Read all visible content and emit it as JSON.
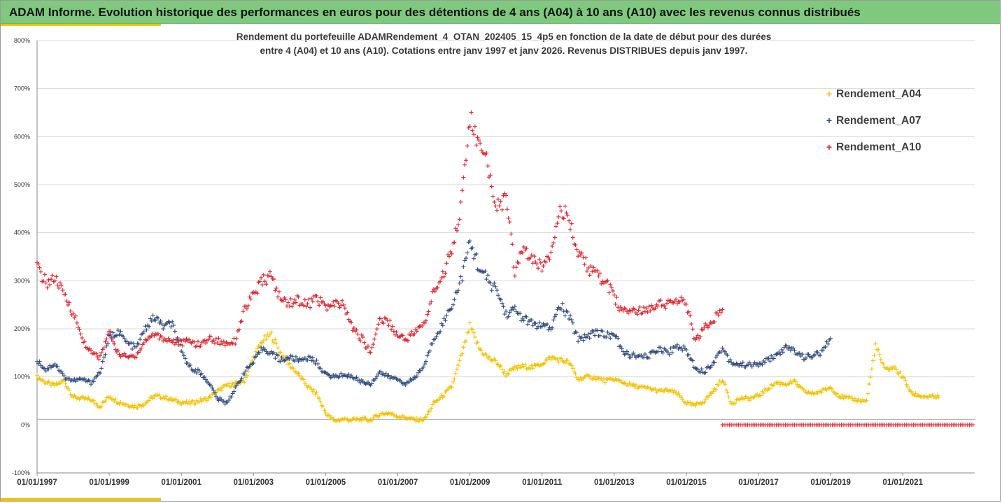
{
  "banner": {
    "title": "ADAM Informe. Evolution historique des performances en euros pour des détentions de 4 ans (A04) à 10 ans (A10) avec les revenus connus distribués"
  },
  "chart_data": {
    "type": "scatter",
    "title_lines": [
      "Rendement du portefeuille ADAMRendement_4_OTAN_202405_15_4p5  en fonction de la date de début pour des durées",
      "entre 4 (A04) et 10 ans (A10). Cotations entre janv 1997 et janv 2026. Revenus DISTRIBUES depuis janv 1997."
    ],
    "xlabel": "",
    "ylabel": "",
    "x_range": [
      "1997-01-01",
      "2022-12-31"
    ],
    "ylim": [
      -100,
      800
    ],
    "y_ticks": [
      -100,
      0,
      100,
      200,
      300,
      400,
      500,
      600,
      700,
      800
    ],
    "y_tick_labels": [
      "-100%",
      "0%",
      "100%",
      "200%",
      "300%",
      "400%",
      "500%",
      "600%",
      "700%",
      "800%"
    ],
    "x_tick_labels": [
      "01/01/1997",
      "01/01/1999",
      "01/01/2001",
      "01/01/2003",
      "01/01/2005",
      "01/01/2007",
      "01/01/2009",
      "01/01/2011",
      "01/01/2013",
      "01/01/2015",
      "01/01/2017",
      "01/01/2019",
      "01/01/2021"
    ],
    "grid": "horizontal",
    "legend_position": "right",
    "marker": "+",
    "series": [
      {
        "name": "Rendement_A04",
        "color": "#f2c200",
        "points": [
          [
            "1997-01-01",
            100
          ],
          [
            "1997-04-01",
            88
          ],
          [
            "1997-07-01",
            82
          ],
          [
            "1997-10-01",
            92
          ],
          [
            "1998-01-01",
            58
          ],
          [
            "1998-04-01",
            55
          ],
          [
            "1998-07-01",
            52
          ],
          [
            "1998-10-01",
            38
          ],
          [
            "1999-01-01",
            60
          ],
          [
            "1999-04-01",
            48
          ],
          [
            "1999-07-01",
            42
          ],
          [
            "1999-10-01",
            38
          ],
          [
            "2000-01-01",
            45
          ],
          [
            "2000-04-01",
            60
          ],
          [
            "2000-07-01",
            58
          ],
          [
            "2000-10-01",
            52
          ],
          [
            "2001-01-01",
            47
          ],
          [
            "2001-04-01",
            45
          ],
          [
            "2001-07-01",
            50
          ],
          [
            "2001-10-01",
            55
          ],
          [
            "2002-01-01",
            70
          ],
          [
            "2002-04-01",
            82
          ],
          [
            "2002-07-01",
            85
          ],
          [
            "2002-10-01",
            92
          ],
          [
            "2003-01-01",
            140
          ],
          [
            "2003-04-01",
            175
          ],
          [
            "2003-07-01",
            188
          ],
          [
            "2003-10-01",
            150
          ],
          [
            "2004-01-01",
            125
          ],
          [
            "2004-04-01",
            105
          ],
          [
            "2004-07-01",
            80
          ],
          [
            "2004-10-01",
            65
          ],
          [
            "2005-01-01",
            25
          ],
          [
            "2005-04-01",
            8
          ],
          [
            "2005-07-01",
            12
          ],
          [
            "2005-10-01",
            10
          ],
          [
            "2006-01-01",
            12
          ],
          [
            "2006-04-01",
            10
          ],
          [
            "2006-07-01",
            22
          ],
          [
            "2006-10-01",
            25
          ],
          [
            "2007-01-01",
            18
          ],
          [
            "2007-04-01",
            15
          ],
          [
            "2007-07-01",
            10
          ],
          [
            "2007-10-01",
            12
          ],
          [
            "2008-01-01",
            45
          ],
          [
            "2008-04-01",
            60
          ],
          [
            "2008-07-01",
            80
          ],
          [
            "2008-10-01",
            140
          ],
          [
            "2009-01-01",
            205
          ],
          [
            "2009-04-01",
            160
          ],
          [
            "2009-07-01",
            140
          ],
          [
            "2009-10-01",
            130
          ],
          [
            "2010-01-01",
            105
          ],
          [
            "2010-04-01",
            118
          ],
          [
            "2010-07-01",
            122
          ],
          [
            "2010-10-01",
            120
          ],
          [
            "2011-01-01",
            128
          ],
          [
            "2011-04-01",
            140
          ],
          [
            "2011-07-01",
            135
          ],
          [
            "2011-10-01",
            130
          ],
          [
            "2012-01-01",
            95
          ],
          [
            "2012-04-01",
            100
          ],
          [
            "2012-07-01",
            98
          ],
          [
            "2012-10-01",
            92
          ],
          [
            "2013-01-01",
            95
          ],
          [
            "2013-04-01",
            88
          ],
          [
            "2013-07-01",
            82
          ],
          [
            "2013-10-01",
            78
          ],
          [
            "2014-01-01",
            75
          ],
          [
            "2014-04-01",
            70
          ],
          [
            "2014-07-01",
            72
          ],
          [
            "2014-10-01",
            65
          ],
          [
            "2015-01-01",
            45
          ],
          [
            "2015-04-01",
            40
          ],
          [
            "2015-07-01",
            50
          ],
          [
            "2015-10-01",
            70
          ],
          [
            "2016-01-01",
            95
          ],
          [
            "2016-04-01",
            45
          ],
          [
            "2016-07-01",
            55
          ],
          [
            "2016-10-01",
            55
          ],
          [
            "2017-01-01",
            60
          ],
          [
            "2017-04-01",
            75
          ],
          [
            "2017-07-01",
            88
          ],
          [
            "2017-10-01",
            85
          ],
          [
            "2018-01-01",
            90
          ],
          [
            "2018-04-01",
            70
          ],
          [
            "2018-07-01",
            65
          ],
          [
            "2018-10-01",
            70
          ],
          [
            "2019-01-01",
            78
          ],
          [
            "2019-04-01",
            60
          ],
          [
            "2019-07-01",
            55
          ],
          [
            "2019-10-01",
            52
          ],
          [
            "2020-01-01",
            50
          ],
          [
            "2020-04-01",
            165
          ],
          [
            "2020-07-01",
            115
          ],
          [
            "2020-10-01",
            120
          ],
          [
            "2021-01-01",
            100
          ],
          [
            "2021-04-01",
            65
          ],
          [
            "2021-07-01",
            60
          ],
          [
            "2021-10-01",
            58
          ],
          [
            "2022-01-01",
            58
          ]
        ]
      },
      {
        "name": "Rendement_A07",
        "color": "#2e4a7d",
        "points": [
          [
            "1997-01-01",
            135
          ],
          [
            "1997-04-01",
            115
          ],
          [
            "1997-07-01",
            128
          ],
          [
            "1997-10-01",
            100
          ],
          [
            "1998-01-01",
            92
          ],
          [
            "1998-04-01",
            95
          ],
          [
            "1998-07-01",
            88
          ],
          [
            "1998-10-01",
            110
          ],
          [
            "1999-01-01",
            180
          ],
          [
            "1999-04-01",
            195
          ],
          [
            "1999-07-01",
            170
          ],
          [
            "1999-10-01",
            160
          ],
          [
            "2000-01-01",
            200
          ],
          [
            "2000-04-01",
            225
          ],
          [
            "2000-07-01",
            205
          ],
          [
            "2000-10-01",
            210
          ],
          [
            "2001-01-01",
            150
          ],
          [
            "2001-04-01",
            120
          ],
          [
            "2001-07-01",
            110
          ],
          [
            "2001-10-01",
            90
          ],
          [
            "2002-01-01",
            55
          ],
          [
            "2002-04-01",
            45
          ],
          [
            "2002-07-01",
            75
          ],
          [
            "2002-10-01",
            110
          ],
          [
            "2003-01-01",
            130
          ],
          [
            "2003-04-01",
            160
          ],
          [
            "2003-07-01",
            150
          ],
          [
            "2003-10-01",
            135
          ],
          [
            "2004-01-01",
            140
          ],
          [
            "2004-04-01",
            135
          ],
          [
            "2004-07-01",
            140
          ],
          [
            "2004-10-01",
            130
          ],
          [
            "2005-01-01",
            105
          ],
          [
            "2005-04-01",
            100
          ],
          [
            "2005-07-01",
            105
          ],
          [
            "2005-10-01",
            100
          ],
          [
            "2006-01-01",
            90
          ],
          [
            "2006-04-01",
            85
          ],
          [
            "2006-07-01",
            110
          ],
          [
            "2006-10-01",
            100
          ],
          [
            "2007-01-01",
            95
          ],
          [
            "2007-04-01",
            85
          ],
          [
            "2007-07-01",
            100
          ],
          [
            "2007-10-01",
            125
          ],
          [
            "2008-01-01",
            180
          ],
          [
            "2008-04-01",
            210
          ],
          [
            "2008-07-01",
            250
          ],
          [
            "2008-10-01",
            300
          ],
          [
            "2009-01-01",
            380
          ],
          [
            "2009-04-01",
            330
          ],
          [
            "2009-07-01",
            300
          ],
          [
            "2009-10-01",
            280
          ],
          [
            "2010-01-01",
            230
          ],
          [
            "2010-04-01",
            240
          ],
          [
            "2010-07-01",
            220
          ],
          [
            "2010-10-01",
            210
          ],
          [
            "2011-01-01",
            205
          ],
          [
            "2011-04-01",
            200
          ],
          [
            "2011-07-01",
            250
          ],
          [
            "2011-10-01",
            225
          ],
          [
            "2012-01-01",
            180
          ],
          [
            "2012-04-01",
            185
          ],
          [
            "2012-07-01",
            195
          ],
          [
            "2012-10-01",
            185
          ],
          [
            "2013-01-01",
            190
          ],
          [
            "2013-04-01",
            150
          ],
          [
            "2013-07-01",
            145
          ],
          [
            "2013-10-01",
            140
          ],
          [
            "2014-01-01",
            145
          ],
          [
            "2014-04-01",
            160
          ],
          [
            "2014-07-01",
            150
          ],
          [
            "2014-10-01",
            165
          ],
          [
            "2015-01-01",
            155
          ],
          [
            "2015-04-01",
            120
          ],
          [
            "2015-07-01",
            110
          ],
          [
            "2015-10-01",
            130
          ],
          [
            "2016-01-01",
            160
          ],
          [
            "2016-04-01",
            130
          ],
          [
            "2016-07-01",
            125
          ],
          [
            "2016-10-01",
            125
          ],
          [
            "2017-01-01",
            125
          ],
          [
            "2017-04-01",
            135
          ],
          [
            "2017-07-01",
            145
          ],
          [
            "2017-10-01",
            160
          ],
          [
            "2018-01-01",
            155
          ],
          [
            "2018-04-01",
            140
          ],
          [
            "2018-07-01",
            145
          ],
          [
            "2018-10-01",
            150
          ],
          [
            "2019-01-01",
            180
          ]
        ]
      },
      {
        "name": "Rendement_A10",
        "color": "#e0202a",
        "points": [
          [
            "1997-01-01",
            330
          ],
          [
            "1997-04-01",
            295
          ],
          [
            "1997-07-01",
            305
          ],
          [
            "1997-10-01",
            270
          ],
          [
            "1998-01-01",
            235
          ],
          [
            "1998-04-01",
            180
          ],
          [
            "1998-07-01",
            150
          ],
          [
            "1998-10-01",
            140
          ],
          [
            "1999-01-01",
            195
          ],
          [
            "1999-04-01",
            150
          ],
          [
            "1999-07-01",
            140
          ],
          [
            "1999-10-01",
            145
          ],
          [
            "2000-01-01",
            175
          ],
          [
            "2000-04-01",
            190
          ],
          [
            "2000-07-01",
            180
          ],
          [
            "2000-10-01",
            175
          ],
          [
            "2001-01-01",
            170
          ],
          [
            "2001-04-01",
            175
          ],
          [
            "2001-07-01",
            165
          ],
          [
            "2001-10-01",
            180
          ],
          [
            "2002-01-01",
            175
          ],
          [
            "2002-04-01",
            170
          ],
          [
            "2002-07-01",
            175
          ],
          [
            "2002-10-01",
            240
          ],
          [
            "2003-01-01",
            270
          ],
          [
            "2003-04-01",
            300
          ],
          [
            "2003-07-01",
            310
          ],
          [
            "2003-10-01",
            260
          ],
          [
            "2004-01-01",
            255
          ],
          [
            "2004-04-01",
            260
          ],
          [
            "2004-07-01",
            250
          ],
          [
            "2004-10-01",
            265
          ],
          [
            "2005-01-01",
            245
          ],
          [
            "2005-04-01",
            250
          ],
          [
            "2005-07-01",
            250
          ],
          [
            "2005-10-01",
            200
          ],
          [
            "2006-01-01",
            180
          ],
          [
            "2006-04-01",
            150
          ],
          [
            "2006-07-01",
            220
          ],
          [
            "2006-10-01",
            215
          ],
          [
            "2007-01-01",
            185
          ],
          [
            "2007-04-01",
            180
          ],
          [
            "2007-07-01",
            195
          ],
          [
            "2007-10-01",
            210
          ],
          [
            "2008-01-01",
            280
          ],
          [
            "2008-04-01",
            310
          ],
          [
            "2008-07-01",
            370
          ],
          [
            "2008-10-01",
            450
          ],
          [
            "2009-01-01",
            640
          ],
          [
            "2009-04-01",
            580
          ],
          [
            "2009-07-01",
            540
          ],
          [
            "2009-10-01",
            455
          ],
          [
            "2010-01-01",
            470
          ],
          [
            "2010-04-01",
            320
          ],
          [
            "2010-07-01",
            370
          ],
          [
            "2010-10-01",
            340
          ],
          [
            "2011-01-01",
            330
          ],
          [
            "2011-04-01",
            360
          ],
          [
            "2011-07-01",
            460
          ],
          [
            "2011-10-01",
            420
          ],
          [
            "2012-01-01",
            360
          ],
          [
            "2012-04-01",
            330
          ],
          [
            "2012-07-01",
            310
          ],
          [
            "2012-10-01",
            300
          ],
          [
            "2013-01-01",
            265
          ],
          [
            "2013-04-01",
            235
          ],
          [
            "2013-07-01",
            240
          ],
          [
            "2013-10-01",
            235
          ],
          [
            "2014-01-01",
            245
          ],
          [
            "2014-04-01",
            255
          ],
          [
            "2014-07-01",
            250
          ],
          [
            "2014-10-01",
            260
          ],
          [
            "2015-01-01",
            250
          ],
          [
            "2015-04-01",
            175
          ],
          [
            "2015-07-01",
            200
          ],
          [
            "2015-10-01",
            220
          ],
          [
            "2016-01-01",
            240
          ]
        ],
        "flat_segment": {
          "value": 0,
          "from": "2016-01-01",
          "to": "2022-12-31"
        }
      }
    ]
  }
}
